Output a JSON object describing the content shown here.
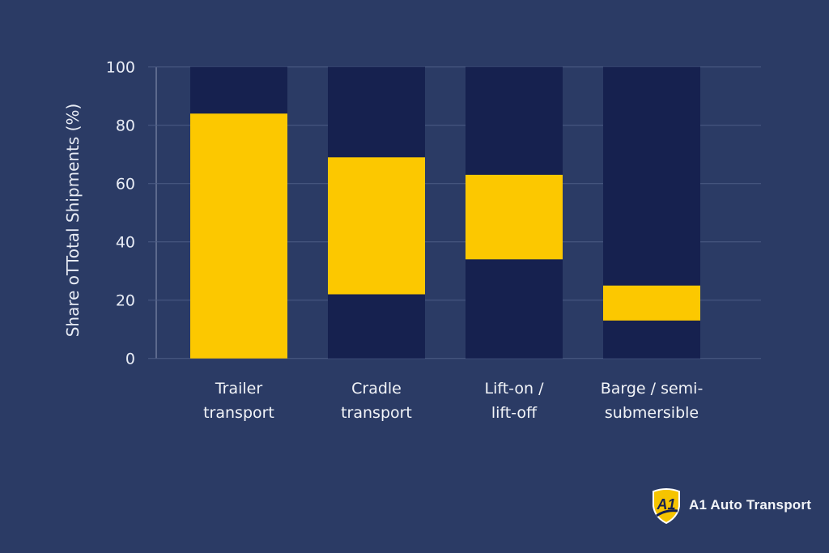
{
  "chart_data": {
    "type": "bar",
    "subtype": "floating-range",
    "categories": [
      [
        "Trailer",
        "transport"
      ],
      [
        "Cradle",
        "transport"
      ],
      [
        "Lift-on /",
        "lift-off"
      ],
      [
        "Barge / semi-",
        "submersible"
      ]
    ],
    "ranges": [
      [
        0,
        84
      ],
      [
        22,
        69
      ],
      [
        34,
        63
      ],
      [
        13,
        25
      ]
    ],
    "background_max": 100,
    "ylabel": "Share oTTotal Shipments (%)",
    "ylim": [
      0,
      100
    ],
    "yticks": [
      0,
      20,
      40,
      60,
      80,
      100
    ],
    "grid": true,
    "colors": {
      "range": "#fcc800",
      "track": "#16214f",
      "background": "#2b3b65"
    }
  },
  "logo": {
    "text": "A1 Auto Transport",
    "badge": "A1"
  }
}
